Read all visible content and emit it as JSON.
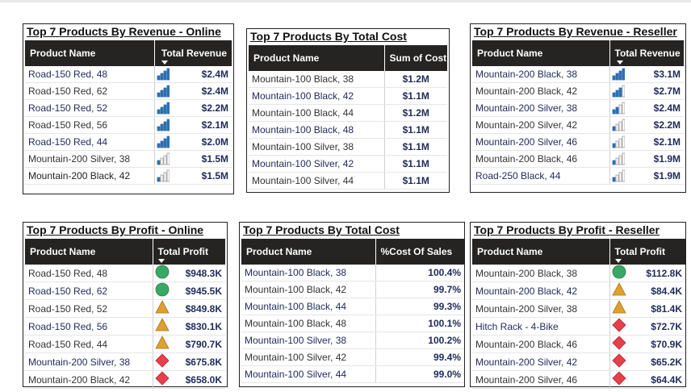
{
  "tables": [
    {
      "title": "Top 7 Products By Revenue - Online",
      "col1": "Product Name",
      "col2": "Total Revenue",
      "kind": "bars",
      "rows": [
        {
          "name": "Road-150 Red, 48",
          "value": "$2.4M",
          "level": 4
        },
        {
          "name": "Road-150 Red, 62",
          "value": "$2.4M",
          "level": 4
        },
        {
          "name": "Road-150 Red, 52",
          "value": "$2.2M",
          "level": 4
        },
        {
          "name": "Road-150 Red, 56",
          "value": "$2.1M",
          "level": 4
        },
        {
          "name": "Road-150 Red, 44",
          "value": "$2.0M",
          "level": 4
        },
        {
          "name": "Mountain-200 Silver, 38",
          "value": "$1.5M",
          "level": 1
        },
        {
          "name": "Mountain-200 Black, 42",
          "value": "$1.5M",
          "level": 1
        }
      ]
    },
    {
      "title": "Top 7 Products By Total Cost",
      "col1": "Product Name",
      "col2": "Sum of Cost",
      "kind": "plain",
      "rows": [
        {
          "name": "Mountain-100 Black, 38",
          "value": "$1.2M"
        },
        {
          "name": "Mountain-100 Black, 42",
          "value": "$1.1M"
        },
        {
          "name": "Mountain-100 Black, 44",
          "value": "$1.2M"
        },
        {
          "name": "Mountain-100 Black, 48",
          "value": "$1.1M"
        },
        {
          "name": "Mountain-100 Silver, 38",
          "value": "$1.1M"
        },
        {
          "name": "Mountain-100 Silver, 42",
          "value": "$1.1M"
        },
        {
          "name": "Mountain-100 Silver, 44",
          "value": "$1.1M"
        }
      ]
    },
    {
      "title": "Top 7 Products By Revenue - Reseller",
      "col1": "Product Name",
      "col2": "Total Revenue",
      "kind": "bars",
      "rows": [
        {
          "name": "Mountain-200 Black, 38",
          "value": "$3.1M",
          "level": 4
        },
        {
          "name": "Mountain-200 Black, 42",
          "value": "$2.7M",
          "level": 3
        },
        {
          "name": "Mountain-200 Silver, 38",
          "value": "$2.4M",
          "level": 2
        },
        {
          "name": "Mountain-200 Silver, 42",
          "value": "$2.2M",
          "level": 1
        },
        {
          "name": "Mountain-200 Silver, 46",
          "value": "$2.1M",
          "level": 1
        },
        {
          "name": "Mountain-200 Black, 46",
          "value": "$1.9M",
          "level": 1
        },
        {
          "name": "Road-250 Black, 44",
          "value": "$1.9M",
          "level": 1
        }
      ]
    },
    {
      "title": "Top 7 Products By Profit - Online",
      "col1": "Product Name",
      "col2": "Total Profit",
      "kind": "shapes",
      "rows": [
        {
          "name": "Road-150 Red, 48",
          "value": "$948.3K",
          "shape": "circle"
        },
        {
          "name": "Road-150 Red, 62",
          "value": "$945.5K",
          "shape": "circle"
        },
        {
          "name": "Road-150 Red, 52",
          "value": "$849.8K",
          "shape": "triangle"
        },
        {
          "name": "Road-150 Red, 56",
          "value": "$830.1K",
          "shape": "triangle"
        },
        {
          "name": "Road-150 Red, 44",
          "value": "$790.7K",
          "shape": "triangle"
        },
        {
          "name": "Mountain-200 Silver, 38",
          "value": "$675.8K",
          "shape": "diamond"
        },
        {
          "name": "Mountain-200 Black, 42",
          "value": "$658.0K",
          "shape": "diamond"
        }
      ]
    },
    {
      "title": "Top 7 Products By Total Cost",
      "col1": "Product Name",
      "col2": "%Cost Of Sales",
      "kind": "pct",
      "rows": [
        {
          "name": "Mountain-100 Black, 38",
          "value": "100.4%"
        },
        {
          "name": "Mountain-100 Black, 42",
          "value": "99.7%"
        },
        {
          "name": "Mountain-100 Black, 44",
          "value": "99.3%"
        },
        {
          "name": "Mountain-100 Black, 48",
          "value": "100.1%"
        },
        {
          "name": "Mountain-100 Silver, 38",
          "value": "100.2%"
        },
        {
          "name": "Mountain-100 Silver, 42",
          "value": "99.4%"
        },
        {
          "name": "Mountain-100 Silver, 44",
          "value": "99.0%"
        }
      ]
    },
    {
      "title": "Top 7 Products By Profit - Reseller",
      "col1": "Product Name",
      "col2": "Total Profit",
      "kind": "shapes",
      "rows": [
        {
          "name": "Mountain-200 Black, 38",
          "value": "$112.8K",
          "shape": "circle"
        },
        {
          "name": "Mountain-200 Black, 42",
          "value": "$84.4K",
          "shape": "triangle"
        },
        {
          "name": "Mountain-200 Silver, 38",
          "value": "$81.4K",
          "shape": "triangle"
        },
        {
          "name": "Hitch Rack - 4-Bike",
          "value": "$72.7K",
          "shape": "diamond"
        },
        {
          "name": "Mountain-200 Black, 46",
          "value": "$70.9K",
          "shape": "diamond"
        },
        {
          "name": "Mountain-200 Silver, 42",
          "value": "$65.2K",
          "shape": "diamond"
        },
        {
          "name": "Mountain-200 Silver, 46",
          "value": "$64.4K",
          "shape": "diamond"
        }
      ]
    }
  ],
  "colors": {
    "header_bg": "#252423",
    "bar_fill": "#2e6fb0",
    "bar_empty": "#c9c9c9",
    "circle": "#3aa865",
    "triangle": "#e0a030",
    "diamond": "#e8404a",
    "value_text": "#1f2a5a"
  }
}
